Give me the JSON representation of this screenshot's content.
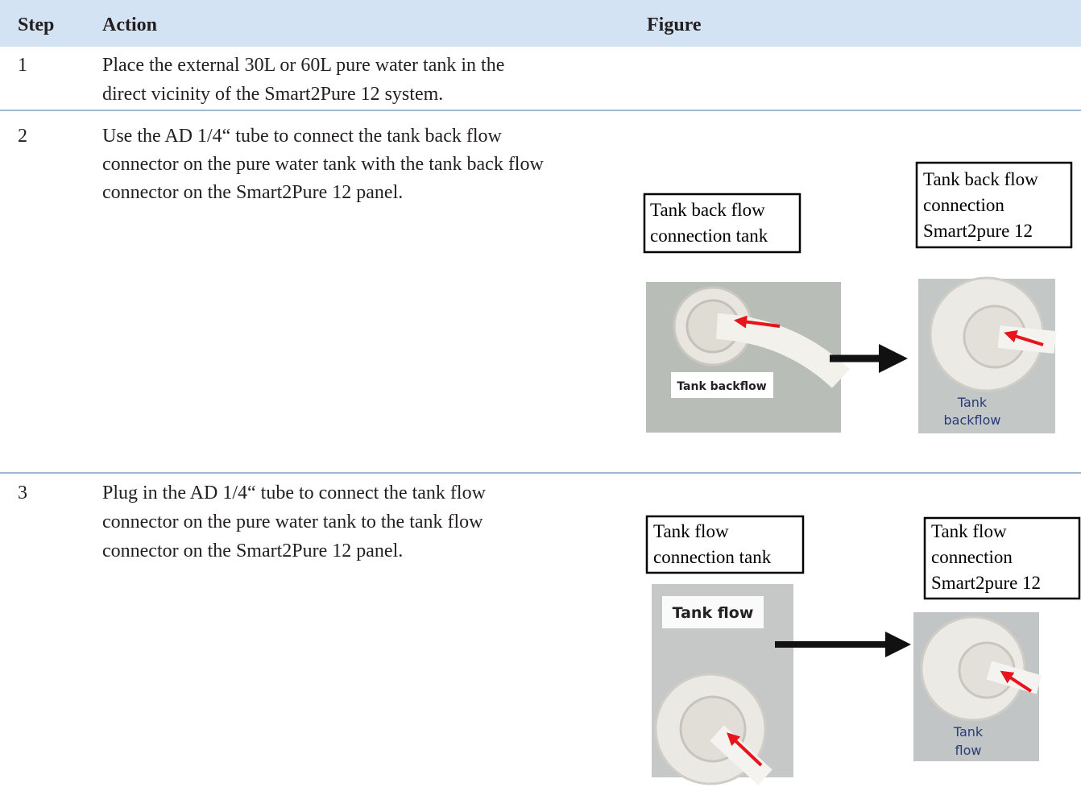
{
  "table": {
    "header": [
      "Step",
      "Action",
      "Figure"
    ],
    "rows": [
      {
        "step": "1",
        "action": [
          "Place the external 30L or 60L pure water tank in the",
          "direct vicinity of the Smart2Pure 12 system."
        ]
      },
      {
        "step": "2",
        "action": [
          "Use the AD 1/4“ tube to connect the tank back flow",
          "connector on the pure water tank with the tank back flow",
          "connector on the Smart2Pure 12 panel."
        ],
        "figure": {
          "callouts": [
            [
              "Tank back flow",
              "connection tank"
            ],
            [
              "Tank back flow",
              "connection",
              "Smart2pure 12"
            ]
          ],
          "photo_labels": [
            [
              "Tank backflow"
            ],
            [
              "Tank",
              "backflow"
            ]
          ]
        }
      },
      {
        "step": "3",
        "action": [
          "Plug in the AD 1/4“ tube to connect the tank flow",
          "connector on the pure water tank to the tank flow",
          "connector on the Smart2Pure 12 panel."
        ],
        "figure": {
          "callouts": [
            [
              "Tank flow",
              "connection tank"
            ],
            [
              "Tank flow",
              "connection",
              "Smart2pure 12"
            ]
          ],
          "photo_labels": [
            [
              "Tank flow"
            ],
            [
              "Tank",
              "flow"
            ]
          ]
        }
      }
    ]
  }
}
